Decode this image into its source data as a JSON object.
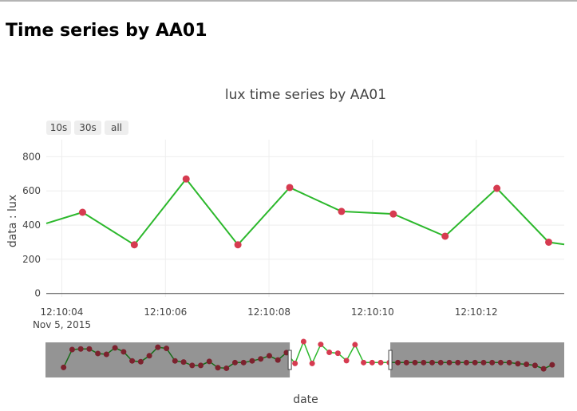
{
  "page": {
    "heading": "Time series by AA01"
  },
  "chart_data": {
    "type": "line",
    "title": "lux time series by AA01",
    "xlabel": "date",
    "ylabel": "data : lux",
    "range_buttons": [
      "10s",
      "30s",
      "all"
    ],
    "x_tick_labels": [
      "12:10:04",
      "12:10:06",
      "12:10:08",
      "12:10:10",
      "12:10:12"
    ],
    "x_tick_date": "Nov 5, 2015",
    "x_tick_seconds": [
      4,
      6,
      8,
      10,
      12
    ],
    "xlim_seconds": [
      3.7,
      13.7
    ],
    "y_ticks": [
      0,
      200,
      400,
      600,
      800
    ],
    "ylim": [
      -20,
      900
    ],
    "grid": true,
    "line_color": "#2cb82c",
    "marker_color": "#d63b50",
    "series": [
      {
        "x": [
          "12:10:04.4",
          "12:10:05.4",
          "12:10:06.4",
          "12:10:07.4",
          "12:10:08.4",
          "12:10:09.4",
          "12:10:10.4",
          "12:10:11.4",
          "12:10:12.4",
          "12:10:13.4"
        ],
        "x_seconds": [
          4.4,
          5.4,
          6.4,
          7.4,
          8.4,
          9.4,
          10.4,
          11.4,
          12.4,
          13.4
        ],
        "values": [
          475,
          285,
          670,
          285,
          620,
          480,
          465,
          335,
          615,
          300
        ]
      }
    ],
    "line_start_value": 410,
    "line_end_value": 287,
    "rangeslider": {
      "window_seconds": [
        3.7,
        13.7
      ],
      "full_seconds": [
        -20.6,
        31
      ],
      "values": [
        215,
        530,
        540,
        540,
        460,
        445,
        560,
        490,
        330,
        315,
        420,
        570,
        550,
        330,
        310,
        250,
        250,
        320,
        210,
        200,
        300,
        300,
        330,
        365,
        420,
        345,
        475,
        285,
        670,
        285,
        620,
        480,
        465,
        335,
        615,
        300,
        300,
        300,
        300,
        300,
        300,
        300,
        300,
        300,
        300,
        300,
        300,
        300,
        300,
        300,
        300,
        300,
        300,
        280,
        270,
        250,
        190,
        260
      ]
    }
  }
}
